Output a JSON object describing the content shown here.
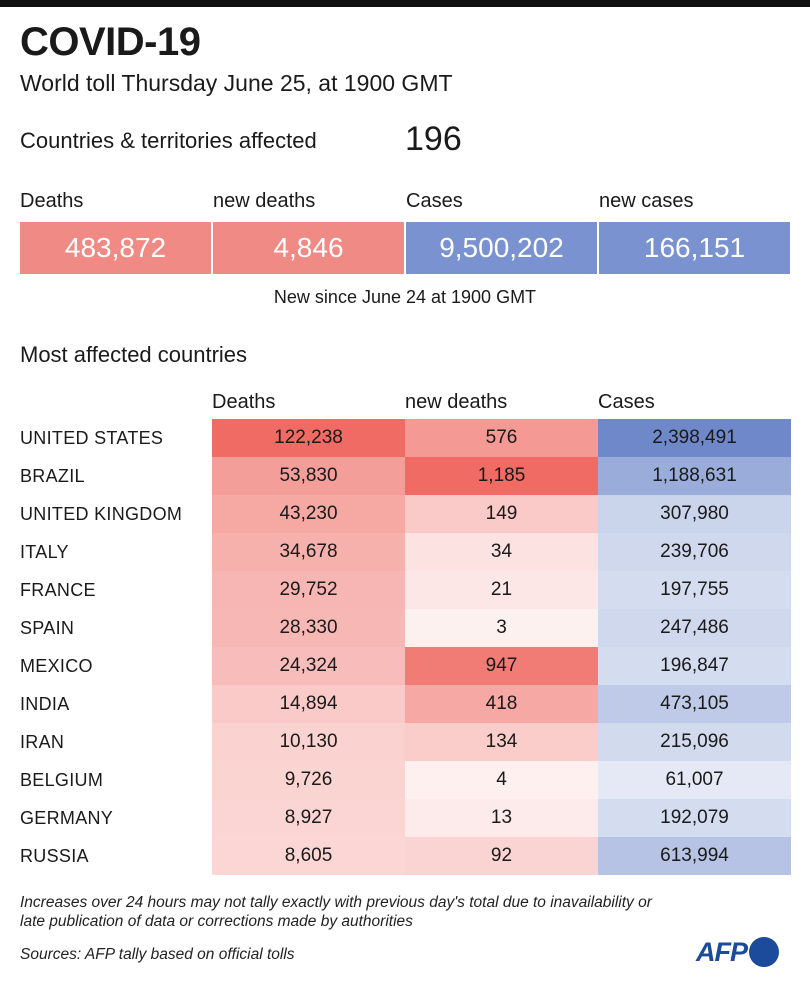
{
  "title": "COVID-19",
  "subtitle": "World toll Thursday June 25, at 1900 GMT",
  "affected": {
    "label": "Countries & territories affected",
    "value": "196"
  },
  "summary": [
    {
      "label": "Deaths",
      "value": "483,872"
    },
    {
      "label": "new deaths",
      "value": "4,846"
    },
    {
      "label": "Cases",
      "value": "9,500,202"
    },
    {
      "label": "new cases",
      "value": "166,151"
    }
  ],
  "new_since": "New since  June 24 at 1900 GMT",
  "section_title": "Most affected countries",
  "colors": {
    "death": "#ef6b64",
    "case": "#6e88c9",
    "light_death": "#fde9e6",
    "light_case": "#e9eef8"
  },
  "chart_data": {
    "type": "table",
    "title": "Most affected countries",
    "columns": [
      "Deaths",
      "new deaths",
      "Cases"
    ],
    "rows": [
      {
        "country": "UNITED STATES",
        "deaths": 122238,
        "new_deaths": 576,
        "cases": 2398491
      },
      {
        "country": "BRAZIL",
        "deaths": 53830,
        "new_deaths": 1185,
        "cases": 1188631
      },
      {
        "country": "UNITED KINGDOM",
        "deaths": 43230,
        "new_deaths": 149,
        "cases": 307980
      },
      {
        "country": "ITALY",
        "deaths": 34678,
        "new_deaths": 34,
        "cases": 239706
      },
      {
        "country": "FRANCE",
        "deaths": 29752,
        "new_deaths": 21,
        "cases": 197755
      },
      {
        "country": "SPAIN",
        "deaths": 28330,
        "new_deaths": 3,
        "cases": 247486
      },
      {
        "country": "MEXICO",
        "deaths": 24324,
        "new_deaths": 947,
        "cases": 196847
      },
      {
        "country": "INDIA",
        "deaths": 14894,
        "new_deaths": 418,
        "cases": 473105
      },
      {
        "country": "IRAN",
        "deaths": 10130,
        "new_deaths": 134,
        "cases": 215096
      },
      {
        "country": "BELGIUM",
        "deaths": 9726,
        "new_deaths": 4,
        "cases": 61007
      },
      {
        "country": "GERMANY",
        "deaths": 8927,
        "new_deaths": 13,
        "cases": 192079
      },
      {
        "country": "RUSSIA",
        "deaths": 8605,
        "new_deaths": 92,
        "cases": 613994
      }
    ]
  },
  "note": "Increases over 24 hours may not tally exactly with previous day's total due to inavailability or late publication of data or corrections made by authorities",
  "sources": "Sources: AFP tally based on official tolls",
  "logo": "AFP"
}
